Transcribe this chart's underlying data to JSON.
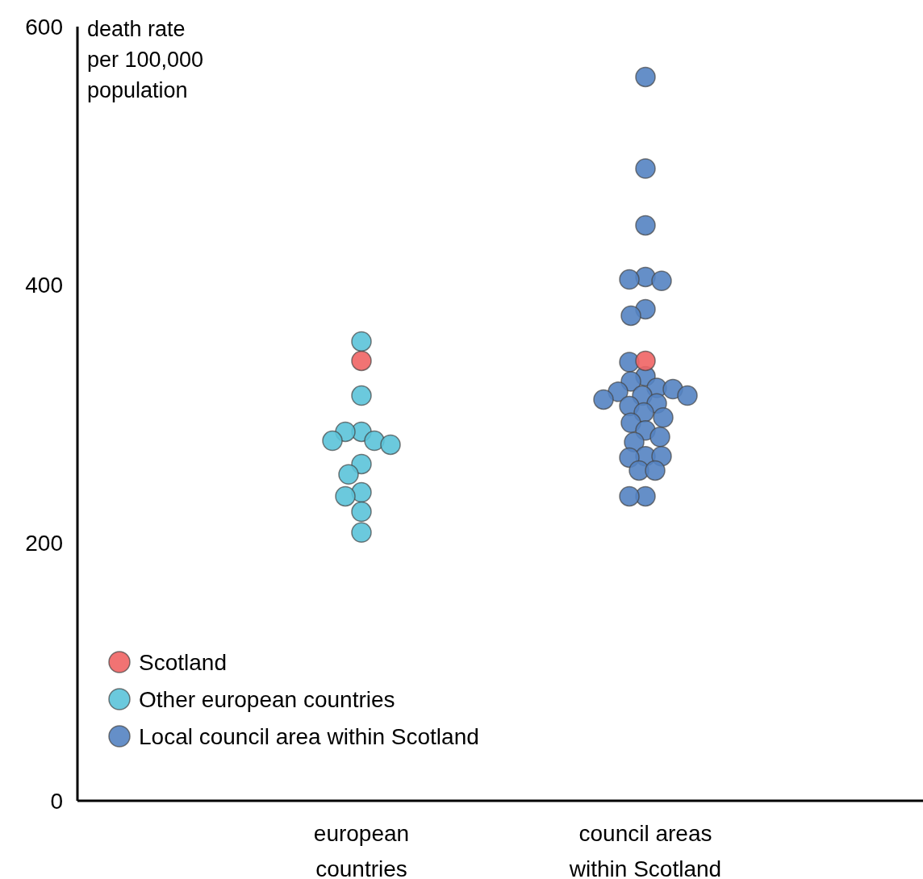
{
  "chart_data": {
    "type": "scatter",
    "ylabel": "death rate per 100,000 population",
    "categories": [
      "european countries",
      "council areas within Scotland"
    ],
    "ylim": [
      0,
      600
    ],
    "yticks": [
      0,
      200,
      400,
      600
    ],
    "grid": false,
    "legend": "bottom left",
    "marker": "circle",
    "series": [
      {
        "name": "Scotland",
        "color": "#f06464",
        "x": [
          "european countries",
          "council areas within Scotland"
        ],
        "values": [
          341,
          341
        ]
      },
      {
        "name": "Other european countries",
        "color": "#5bc3d9",
        "x": [
          "european countries",
          "european countries",
          "european countries",
          "european countries",
          "european countries",
          "european countries",
          "european countries",
          "european countries",
          "european countries",
          "european countries",
          "european countries",
          "european countries",
          "european countries"
        ],
        "values": [
          356,
          314,
          286,
          286,
          279,
          279,
          276,
          261,
          253,
          239,
          236,
          224,
          208
        ]
      },
      {
        "name": "Local council area within Scotland",
        "color": "#5483c2",
        "x": [
          "council areas within Scotland",
          "council areas within Scotland",
          "council areas within Scotland",
          "council areas within Scotland",
          "council areas within Scotland",
          "council areas within Scotland",
          "council areas within Scotland",
          "council areas within Scotland",
          "council areas within Scotland",
          "council areas within Scotland",
          "council areas within Scotland",
          "council areas within Scotland",
          "council areas within Scotland",
          "council areas within Scotland",
          "council areas within Scotland",
          "council areas within Scotland",
          "council areas within Scotland",
          "council areas within Scotland",
          "council areas within Scotland",
          "council areas within Scotland",
          "council areas within Scotland",
          "council areas within Scotland",
          "council areas within Scotland",
          "council areas within Scotland",
          "council areas within Scotland",
          "council areas within Scotland",
          "council areas within Scotland",
          "council areas within Scotland",
          "council areas within Scotland",
          "council areas within Scotland",
          "council areas within Scotland",
          "council areas within Scotland"
        ],
        "values": [
          561,
          490,
          446,
          406,
          404,
          403,
          381,
          376,
          340,
          329,
          325,
          320,
          319,
          317,
          314,
          314,
          311,
          308,
          306,
          301,
          297,
          293,
          287,
          282,
          278,
          267,
          267,
          266,
          256,
          256,
          236,
          236
        ]
      }
    ]
  }
}
